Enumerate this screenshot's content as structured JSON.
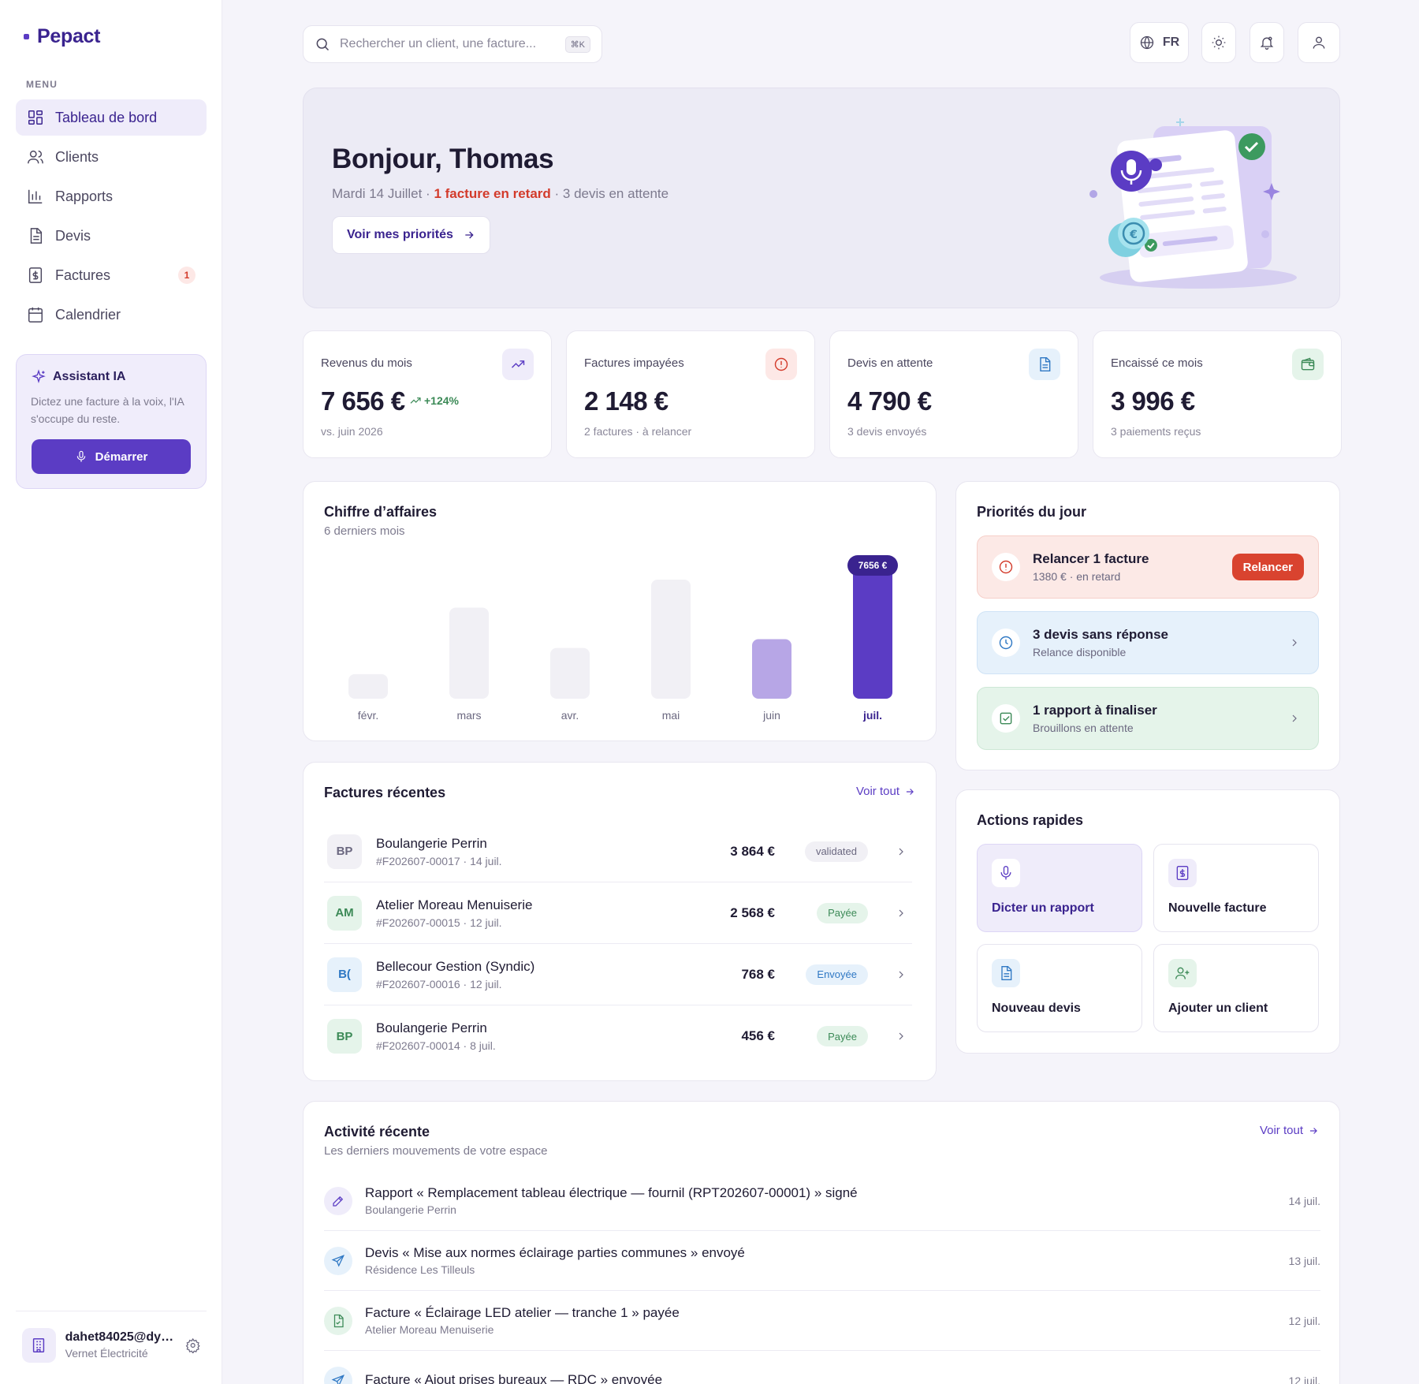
{
  "app": {
    "name": "Pepact"
  },
  "sidebar": {
    "menu_label": "MENU",
    "items": [
      {
        "label": "Tableau de bord",
        "icon": "dashboard-icon",
        "active": true
      },
      {
        "label": "Clients",
        "icon": "users-icon"
      },
      {
        "label": "Rapports",
        "icon": "bar-chart-icon"
      },
      {
        "label": "Devis",
        "icon": "document-icon"
      },
      {
        "label": "Factures",
        "icon": "invoice-icon",
        "badge": "1"
      },
      {
        "label": "Calendrier",
        "icon": "calendar-icon"
      }
    ],
    "assistant": {
      "title": "Assistant IA",
      "description": "Dictez une facture à la voix, l'IA s'occupe du reste.",
      "button": "Démarrer"
    },
    "user": {
      "email": "dahet84025@dy…",
      "company": "Vernet Électricité"
    }
  },
  "topbar": {
    "search_placeholder": "Rechercher un client, une facture...",
    "search_shortcut": "⌘K",
    "language": "FR"
  },
  "hero": {
    "greeting": "Bonjour, Thomas",
    "date": "Mardi 14 Juillet · ",
    "late": "1 facture en retard",
    "pending": " · 3 devis en attente",
    "cta": "Voir mes priorités"
  },
  "stats": [
    {
      "label": "Revenus du mois",
      "value": "7 656 €",
      "delta": "+124%",
      "foot": "vs. juin 2026",
      "icon": "trend-up-icon",
      "accent": "#5b3cc4",
      "bg": "#efecfa"
    },
    {
      "label": "Factures impayées",
      "value": "2 148 €",
      "foot": "2 factures · à relancer",
      "icon": "alert-circle-icon",
      "accent": "#d33b2b",
      "bg": "#fde8e6"
    },
    {
      "label": "Devis en attente",
      "value": "4 790 €",
      "foot": "3 devis envoyés",
      "icon": "document-icon",
      "accent": "#2f78c4",
      "bg": "#e6f1fb"
    },
    {
      "label": "Encaissé ce mois",
      "value": "3 996 €",
      "foot": "3 paiements reçus",
      "icon": "wallet-icon",
      "accent": "#3c8a57",
      "bg": "#e5f4ea"
    }
  ],
  "revenue_chart": {
    "title": "Chiffre d’affaires",
    "subtitle": "6 derniers mois",
    "highlight_label": "7656 €"
  },
  "chart_data": {
    "type": "bar",
    "categories": [
      "févr.",
      "mars",
      "avr.",
      "mai",
      "juin",
      "juil."
    ],
    "values": [
      1400,
      5200,
      2900,
      6800,
      3400,
      7656
    ],
    "ylim": [
      0,
      7656
    ],
    "grid": false,
    "colors": [
      "#f1f0f5",
      "#f1f0f5",
      "#f1f0f5",
      "#f1f0f5",
      "#b7a6e6",
      "#5b3cc4"
    ]
  },
  "priorities": {
    "title": "Priorités du jour",
    "items": [
      {
        "title": "Relancer 1 facture",
        "subtitle": "1380 € · en retard",
        "action": "Relancer",
        "type": "danger"
      },
      {
        "title": "3 devis sans réponse",
        "subtitle": "Relance disponible",
        "type": "info"
      },
      {
        "title": "1 rapport à finaliser",
        "subtitle": "Brouillons en attente",
        "type": "success"
      }
    ]
  },
  "invoices": {
    "title": "Factures récentes",
    "see_all": "Voir tout",
    "rows": [
      {
        "initials": "BP",
        "client": "Boulangerie Perrin",
        "meta": "#F202607-00017 · 14 juil.",
        "amount": "3 864 €",
        "status": "validated"
      },
      {
        "initials": "AM",
        "client": "Atelier Moreau Menuiserie",
        "meta": "#F202607-00015 · 12 juil.",
        "amount": "2 568 €",
        "status": "Payée"
      },
      {
        "initials": "B(",
        "client": "Bellecour Gestion (Syndic)",
        "meta": "#F202607-00016 · 12 juil.",
        "amount": "768 €",
        "status": "Envoyée"
      },
      {
        "initials": "BP",
        "client": "Boulangerie Perrin",
        "meta": "#F202607-00014 · 8 juil.",
        "amount": "456 €",
        "status": "Payée"
      }
    ]
  },
  "quick_actions": {
    "title": "Actions rapides",
    "items": [
      {
        "label": "Dicter un rapport",
        "icon": "microphone-icon"
      },
      {
        "label": "Nouvelle facture",
        "icon": "invoice-icon"
      },
      {
        "label": "Nouveau devis",
        "icon": "document-icon"
      },
      {
        "label": "Ajouter un client",
        "icon": "user-plus-icon"
      }
    ]
  },
  "activity": {
    "title": "Activité récente",
    "subtitle": "Les derniers mouvements de votre espace",
    "see_all": "Voir tout",
    "rows": [
      {
        "text": "Rapport « Remplacement tableau électrique — fournil (RPT202607-00001) » signé",
        "sub": "Boulangerie Perrin",
        "date": "14 juil.",
        "icon": "pen-icon"
      },
      {
        "text": "Devis « Mise aux normes éclairage parties communes » envoyé",
        "sub": "Résidence Les Tilleuls",
        "date": "13 juil.",
        "icon": "send-icon"
      },
      {
        "text": "Facture « Éclairage LED atelier — tranche 1 » payée",
        "sub": "Atelier Moreau Menuiserie",
        "date": "12 juil.",
        "icon": "invoice-paid-icon"
      },
      {
        "text": "Facture « Ajout prises bureaux — RDC » envoyée",
        "sub": "",
        "date": "12 juil.",
        "icon": "send-icon"
      }
    ]
  }
}
